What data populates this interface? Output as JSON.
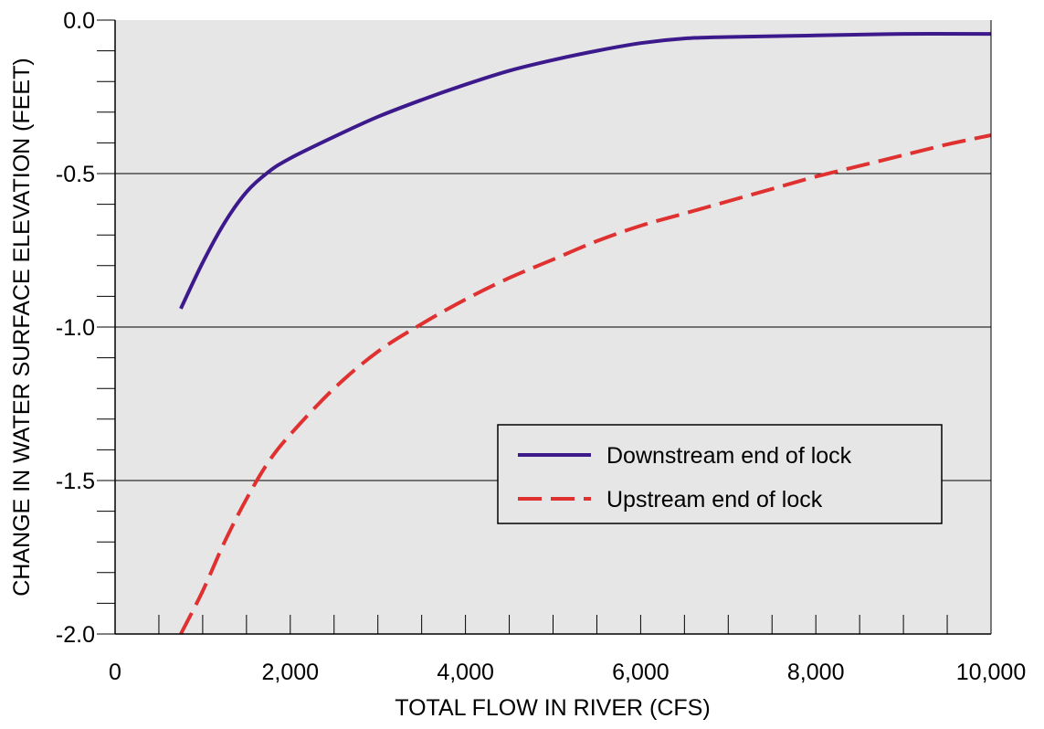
{
  "chart_data": {
    "type": "line",
    "xlabel": "TOTAL FLOW IN RIVER (CFS)",
    "ylabel": "CHANGE IN WATER SURFACE ELEVATION (FEET)",
    "xlim": [
      0,
      10000
    ],
    "ylim": [
      -2.0,
      0.0
    ],
    "x_ticks": [
      {
        "value": 0,
        "label": "0"
      },
      {
        "value": 2000,
        "label": "2,000"
      },
      {
        "value": 4000,
        "label": "4,000"
      },
      {
        "value": 6000,
        "label": "6,000"
      },
      {
        "value": 8000,
        "label": "8,000"
      },
      {
        "value": 10000,
        "label": "10,000"
      }
    ],
    "x_minor_step": 500,
    "y_ticks": [
      {
        "value": 0.0,
        "label": "0.0"
      },
      {
        "value": -0.5,
        "label": "-0.5"
      },
      {
        "value": -1.0,
        "label": "-1.0"
      },
      {
        "value": -1.5,
        "label": "-1.5"
      },
      {
        "value": -2.0,
        "label": "-2.0"
      }
    ],
    "y_minor_step": 0.1,
    "grid": "horizontal at major y ticks",
    "background_color": "#e6e6e6",
    "legend_position": "lower-right",
    "series": [
      {
        "name": "Downstream end of lock",
        "color": "#3d1a8c",
        "dash": "solid",
        "points": [
          [
            750,
            -0.94
          ],
          [
            1000,
            -0.79
          ],
          [
            1250,
            -0.66
          ],
          [
            1500,
            -0.56
          ],
          [
            1750,
            -0.495
          ],
          [
            2000,
            -0.45
          ],
          [
            2500,
            -0.38
          ],
          [
            3000,
            -0.315
          ],
          [
            3500,
            -0.26
          ],
          [
            4000,
            -0.21
          ],
          [
            4500,
            -0.165
          ],
          [
            5000,
            -0.13
          ],
          [
            5500,
            -0.1
          ],
          [
            6000,
            -0.075
          ],
          [
            6500,
            -0.06
          ],
          [
            7000,
            -0.055
          ],
          [
            8000,
            -0.05
          ],
          [
            9000,
            -0.045
          ],
          [
            10000,
            -0.045
          ]
        ]
      },
      {
        "name": "Upstream end of lock",
        "color": "#e03131",
        "dash": "dashed",
        "points": [
          [
            750,
            -2.0
          ],
          [
            1000,
            -1.86
          ],
          [
            1250,
            -1.7
          ],
          [
            1500,
            -1.56
          ],
          [
            1750,
            -1.44
          ],
          [
            2000,
            -1.35
          ],
          [
            2500,
            -1.2
          ],
          [
            3000,
            -1.08
          ],
          [
            3500,
            -0.99
          ],
          [
            4000,
            -0.91
          ],
          [
            4500,
            -0.84
          ],
          [
            5000,
            -0.78
          ],
          [
            5500,
            -0.72
          ],
          [
            6000,
            -0.67
          ],
          [
            6500,
            -0.63
          ],
          [
            7000,
            -0.59
          ],
          [
            7500,
            -0.55
          ],
          [
            8000,
            -0.51
          ],
          [
            8500,
            -0.475
          ],
          [
            9000,
            -0.44
          ],
          [
            9500,
            -0.405
          ],
          [
            10000,
            -0.375
          ]
        ]
      }
    ]
  }
}
